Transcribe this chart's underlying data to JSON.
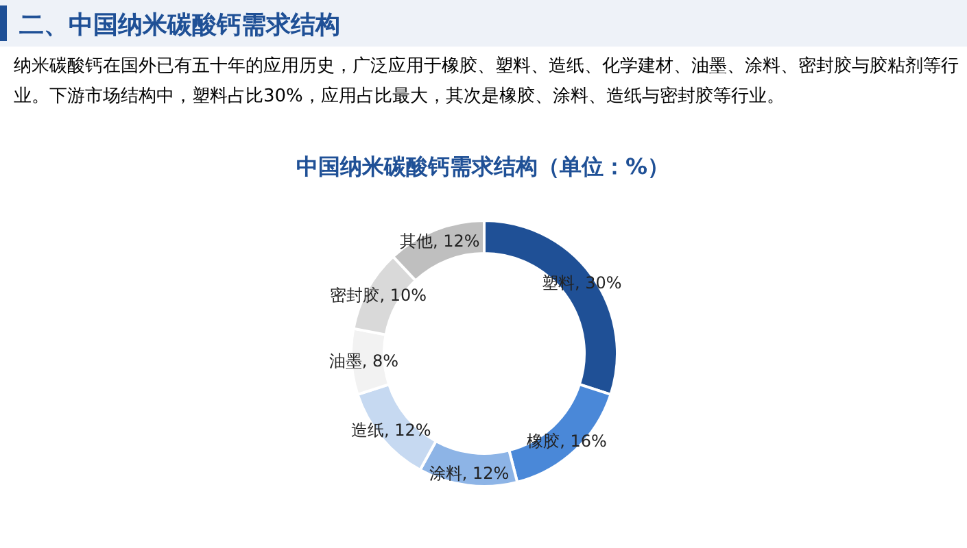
{
  "chart_data": {
    "type": "donut",
    "title": "中国纳米碳酸钙需求结构（单位：%）",
    "annotations": [
      "二、中国纳米碳酸钙需求结构",
      "纳米碳酸钙在国外已有五十年的应用历史，广泛应用于橡胶、塑料、造纸、化学建材、油墨、涂料、密封胶与胶粘剂等行业。下游市场结构中，塑料占比30%，应用占比最大，其次是橡胶、涂料、造纸与密封胶等行业。"
    ],
    "categories": [
      "塑料",
      "橡胶",
      "涂料",
      "造纸",
      "油墨",
      "密封胶",
      "其他"
    ],
    "values": [
      30,
      16,
      12,
      12,
      8,
      10,
      12
    ],
    "value_labels": [
      "30%",
      "16%",
      "12%",
      "12%",
      "8%",
      "10%",
      "12%"
    ],
    "colors": [
      "#1f5096",
      "#4a88d8",
      "#8db4e6",
      "#c6d9f1",
      "#f2f2f2",
      "#d9d9d9",
      "#bfbfbf"
    ]
  }
}
